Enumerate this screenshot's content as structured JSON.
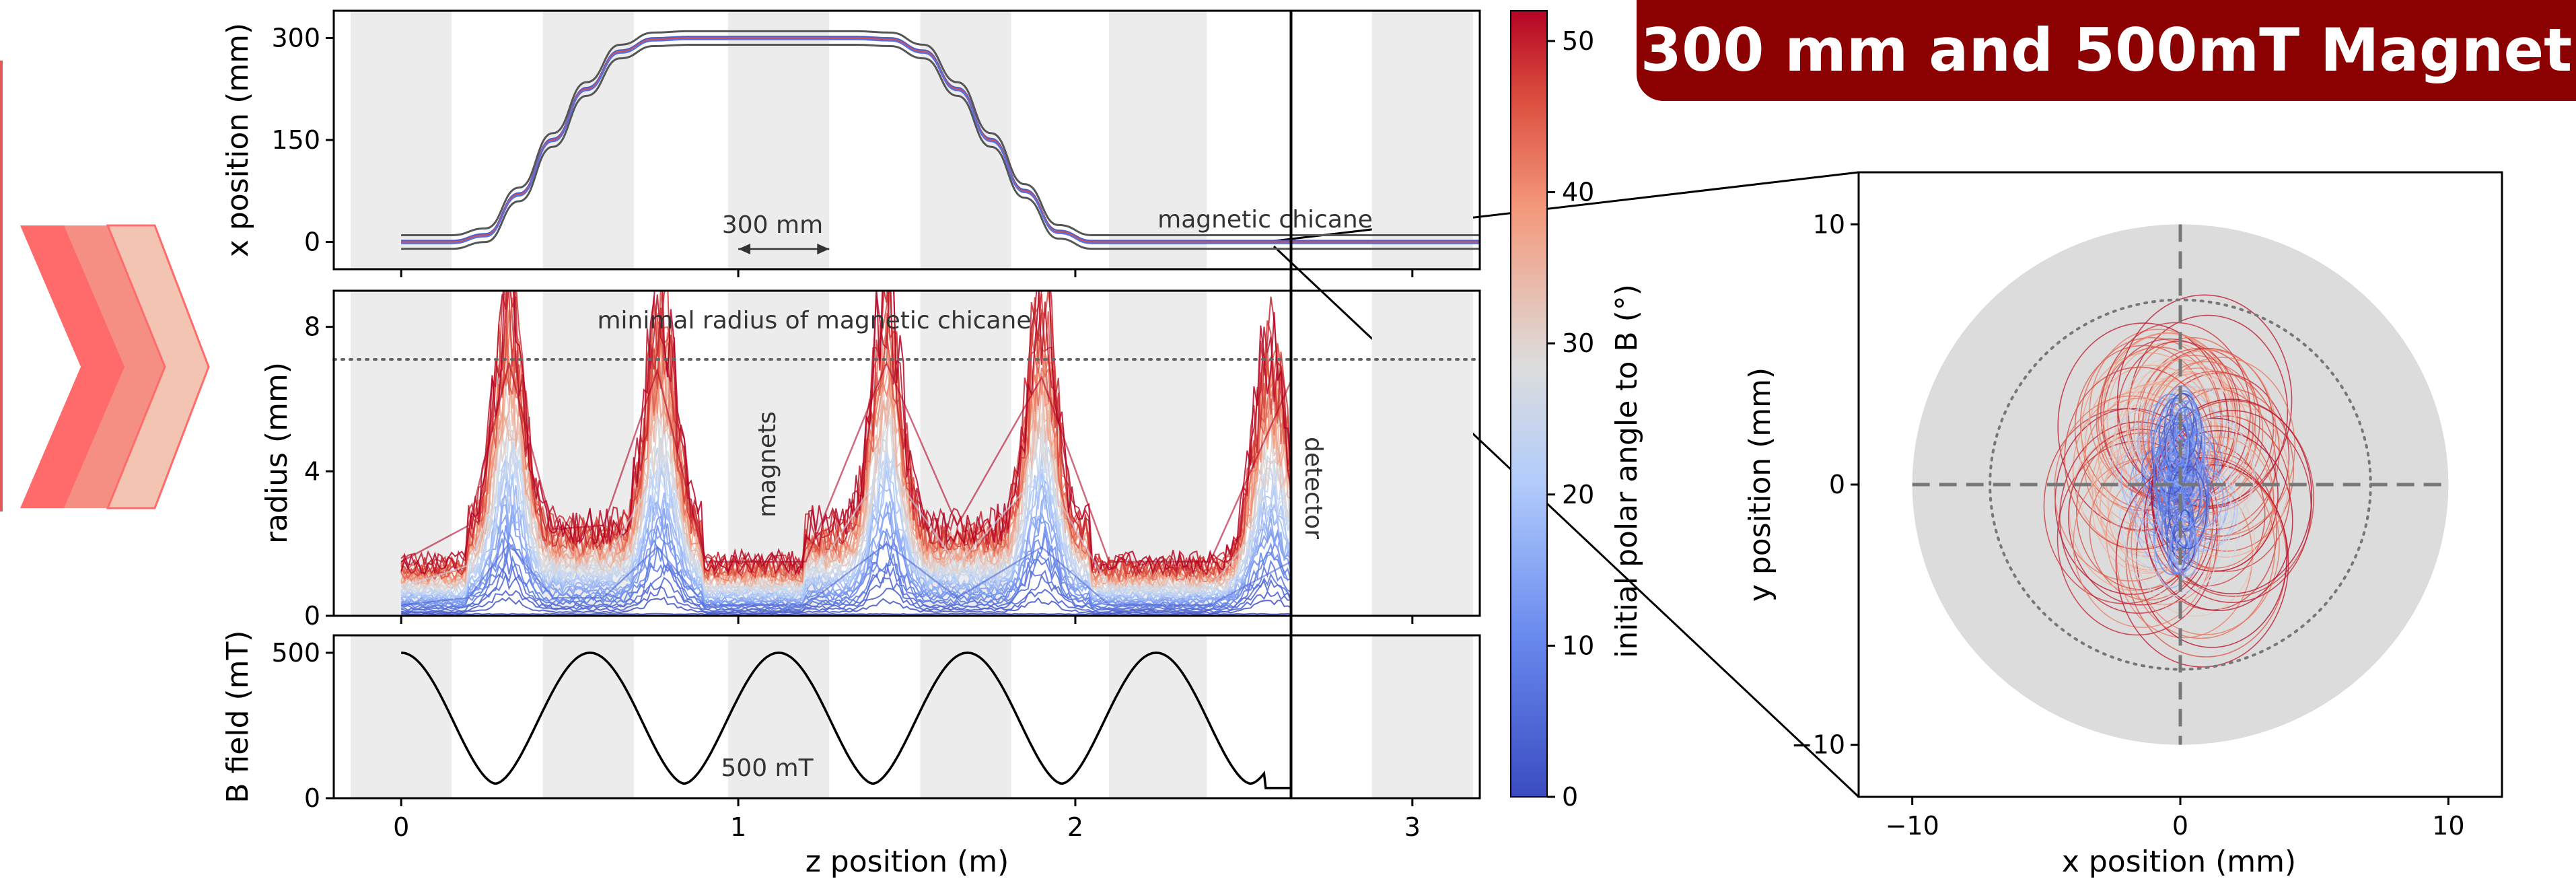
{
  "title_badge": "300 mm and 500mT Magnet",
  "colors": {
    "badge": "#8b0000",
    "accent_left": "#ff6b6b",
    "cmap_low": "#3b4cc0",
    "cmap_mid": "#dddddd",
    "cmap_high": "#b40426",
    "shade": "#ececec",
    "detector_disk": "#dcdcdc"
  },
  "chart_data": [
    {
      "type": "line",
      "panel": "top",
      "xlabel": "",
      "ylabel": "x position (mm)",
      "xlim": [
        -0.2,
        3.2
      ],
      "ylim": [
        -40,
        340
      ],
      "yticks": [
        "0",
        "150",
        "300"
      ],
      "ytick_values": [
        0,
        150,
        300
      ],
      "trajectory_z": [
        0,
        0.15,
        0.25,
        0.35,
        0.45,
        0.55,
        0.65,
        0.75,
        0.85,
        1.35,
        1.45,
        1.55,
        1.65,
        1.75,
        1.85,
        1.95,
        2.05,
        2.64,
        3.2
      ],
      "trajectory_x": [
        0,
        0,
        10,
        70,
        150,
        225,
        280,
        298,
        300,
        300,
        298,
        280,
        225,
        150,
        75,
        15,
        0,
        0,
        0
      ],
      "annotations": [
        "300 mm",
        "magnetic chicane"
      ]
    },
    {
      "type": "line",
      "panel": "middle",
      "xlabel": "",
      "ylabel": "radius (mm)",
      "xlim": [
        -0.2,
        3.2
      ],
      "ylim": [
        0,
        9
      ],
      "yticks": [
        "0",
        "4",
        "8"
      ],
      "ytick_values": [
        0,
        4,
        8
      ],
      "series": [
        {
          "name": "",
          "polar_angle_deg": 52,
          "z": [
            0,
            0.2,
            0.32,
            0.45,
            0.6,
            0.76,
            0.9,
            1.2,
            1.44,
            1.65,
            1.9,
            2.1,
            2.4,
            2.64
          ],
          "radius": [
            1.5,
            2.5,
            7.0,
            2.4,
            2.5,
            6.8,
            1.5,
            1.5,
            7.0,
            2.5,
            6.6,
            1.5,
            1.5,
            6.5
          ]
        },
        {
          "name": "",
          "polar_angle_deg": 25,
          "z": [
            0,
            0.2,
            0.32,
            0.45,
            0.6,
            0.76,
            0.9,
            1.2,
            1.44,
            1.65,
            1.9,
            2.1,
            2.4,
            2.64
          ],
          "radius": [
            0.8,
            1.4,
            4.2,
            1.4,
            1.4,
            4.0,
            0.8,
            0.8,
            4.2,
            1.4,
            4.0,
            0.8,
            0.8,
            3.5
          ]
        },
        {
          "name": "",
          "polar_angle_deg": 5,
          "z": [
            0,
            0.2,
            0.32,
            0.45,
            0.6,
            0.76,
            0.9,
            1.2,
            1.44,
            1.65,
            1.9,
            2.1,
            2.4,
            2.64
          ],
          "radius": [
            0.3,
            0.5,
            2.0,
            0.5,
            0.5,
            1.9,
            0.3,
            0.3,
            2.0,
            0.5,
            1.9,
            0.3,
            0.3,
            1.5
          ]
        }
      ],
      "min_radius_chicane": 7.1,
      "annotations": [
        "minimal radius of magnetic chicane",
        "magnets",
        "detector"
      ]
    },
    {
      "type": "line",
      "panel": "bottom",
      "xlabel": "z position (m)",
      "ylabel": "B field (mT)",
      "xlim": [
        -0.2,
        3.2
      ],
      "ylim": [
        0,
        560
      ],
      "xticks": [
        "0",
        "1",
        "2",
        "3"
      ],
      "xtick_values": [
        0,
        1,
        2,
        3
      ],
      "yticks": [
        "0",
        "500"
      ],
      "ytick_values": [
        0,
        500
      ],
      "bfield_max_mT": 500,
      "bfield_min_mT": 50,
      "bfield_period_m": 0.56,
      "annotations": [
        "500 mT"
      ]
    },
    {
      "type": "heatmap",
      "panel": "colorbar",
      "label": "initial polar angle to B (°)",
      "range": [
        0,
        52
      ],
      "ticks": [
        "0",
        "10",
        "20",
        "30",
        "40",
        "50"
      ],
      "tick_values": [
        0,
        10,
        20,
        30,
        40,
        50
      ]
    },
    {
      "type": "scatter",
      "panel": "detector",
      "xlabel": "x position (mm)",
      "ylabel": "y position (mm)",
      "xlim": [
        -12,
        12
      ],
      "ylim": [
        -12,
        12
      ],
      "xticks": [
        "−10",
        "0",
        "10"
      ],
      "xtick_values": [
        -10,
        0,
        10
      ],
      "yticks": [
        "−10",
        "0",
        "10"
      ],
      "ytick_values": [
        -10,
        0,
        10
      ],
      "detector_radius_mm": 10,
      "dotted_circle_radius_mm": 7.1
    }
  ]
}
